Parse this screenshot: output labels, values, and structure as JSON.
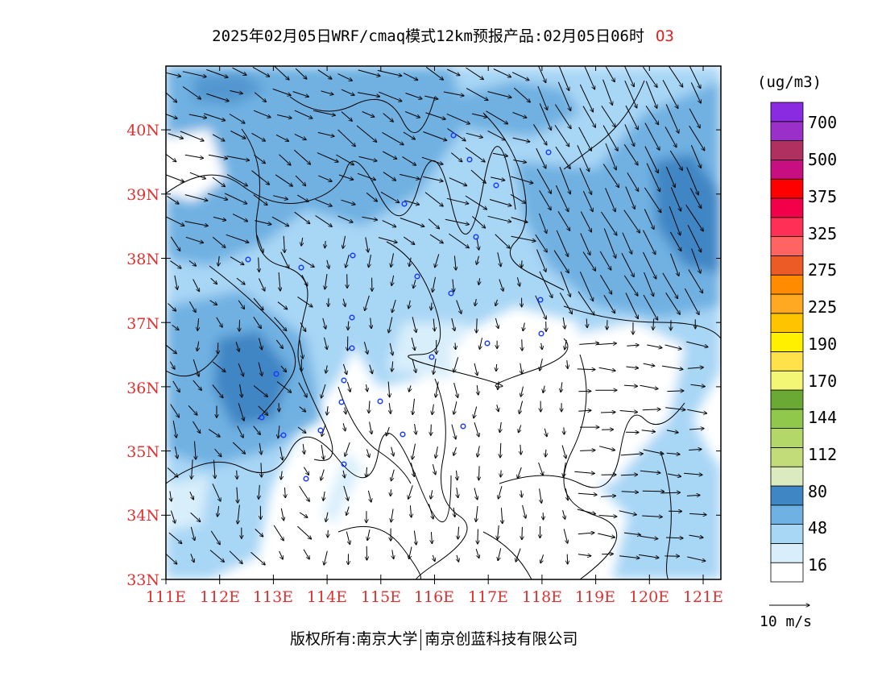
{
  "title": {
    "main": "2025年02月05日WRF/cmaq模式12km预报产品:02月05日06时",
    "species": "O3"
  },
  "map": {
    "lat_labels": [
      "33N",
      "34N",
      "35N",
      "36N",
      "37N",
      "38N",
      "39N",
      "40N"
    ],
    "lon_labels": [
      "111E",
      "112E",
      "113E",
      "114E",
      "115E",
      "116E",
      "117E",
      "118E",
      "119E",
      "120E",
      "121E"
    ],
    "label_color": "#e03030"
  },
  "legend": {
    "unit": "(ug/m3)",
    "colors": [
      "#ffffff",
      "#d8eefb",
      "#a8d6f5",
      "#6fb1e2",
      "#3f86c4",
      "#dcebbf",
      "#c3dc7a",
      "#b3d768",
      "#8fc84a",
      "#6aaa34",
      "#f3f575",
      "#ffe24a",
      "#fff000",
      "#ffc400",
      "#ffa923",
      "#ff8c00",
      "#ec5a26",
      "#ff6463",
      "#ff2f55",
      "#f3004b",
      "#ff0000",
      "#c80f82",
      "#b03060",
      "#9b30c8",
      "#8a2be2"
    ],
    "labels": [
      "16",
      "48",
      "80",
      "112",
      "144",
      "170",
      "190",
      "225",
      "275",
      "325",
      "375",
      "500",
      "700"
    ]
  },
  "reference_vector": {
    "label": "10 m/s"
  },
  "footer": {
    "left": "版权所有:南京大学",
    "right": "南京创蓝科技有限公司"
  }
}
